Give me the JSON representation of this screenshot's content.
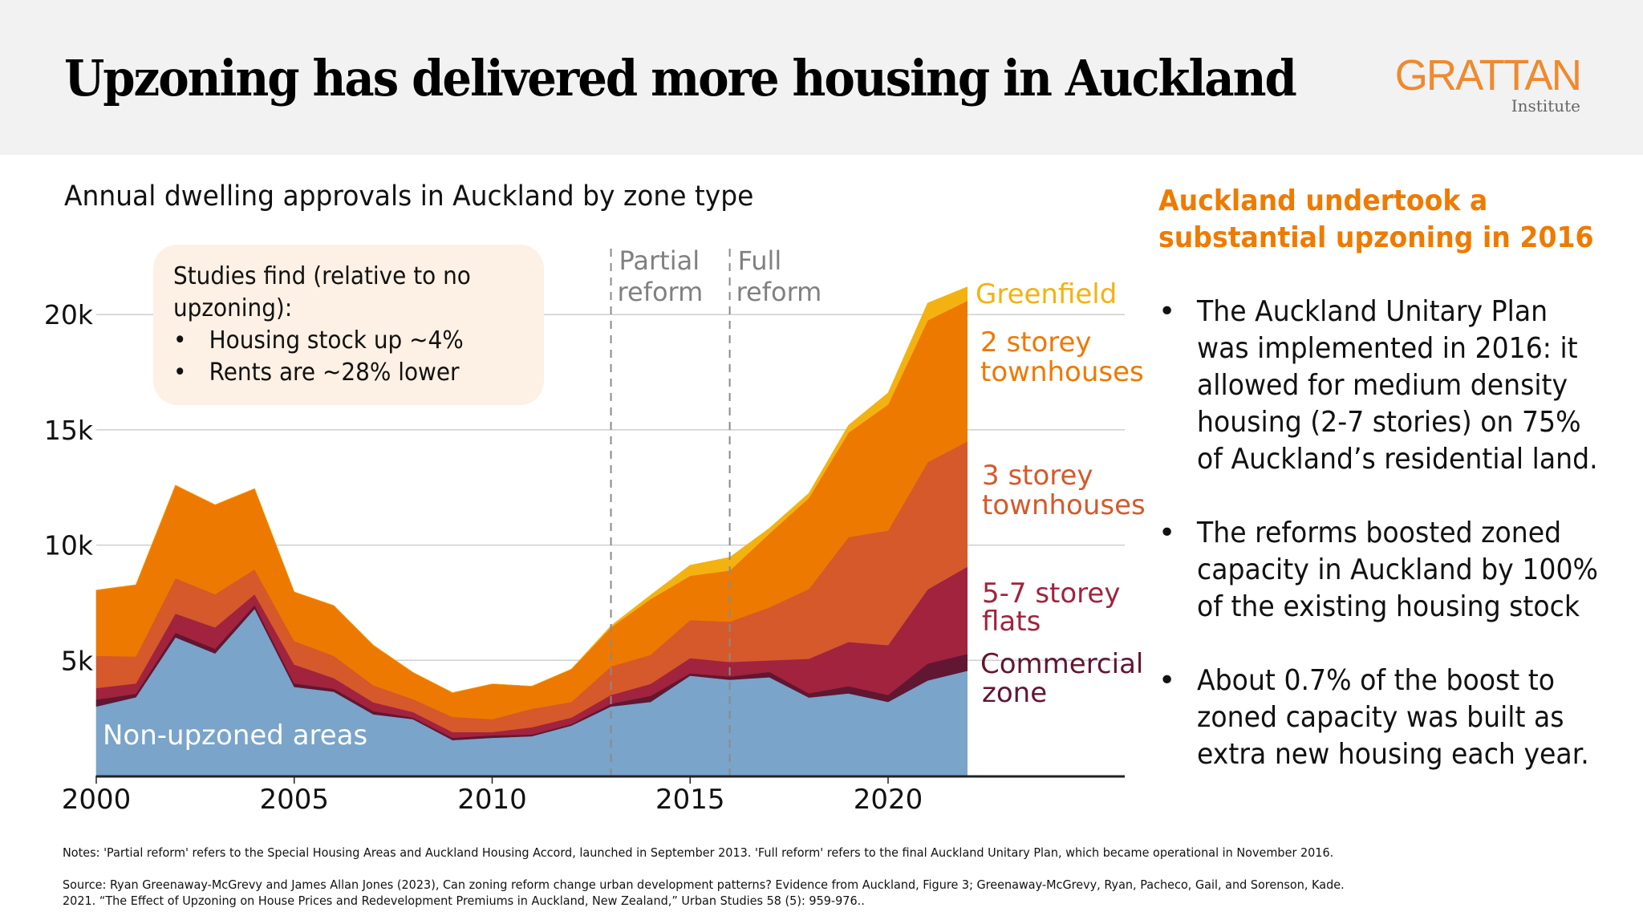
{
  "header": {
    "title": "Upzoning has delivered more housing in Auckland",
    "logo_main": "GRATTAN",
    "logo_sub": "Institute",
    "logo_color": "#ee8a2f"
  },
  "callout": {
    "intro_line1": "Studies find (relative to no",
    "intro_line2": "upzoning):",
    "bullets": [
      "Housing stock up ~4%",
      "Rents are ~28% lower"
    ],
    "bullet_char": "•"
  },
  "side_panel": {
    "title_line1": "Auckland undertook a",
    "title_line2": "substantial upzoning in 2016",
    "title_color": "#ee7b00",
    "bullet_char": "•",
    "bullets": [
      "The Auckland Unitary Plan\nwas implemented in 2016: it\nallowed for medium density\nhousing (2-7 stories) on 75%\nof Auckland’s residential land.",
      "The reforms boosted zoned\ncapacity in Auckland by 100%\nof the existing housing stock",
      "About 0.7% of the boost to\nzoned capacity was built as\nextra new housing each year."
    ]
  },
  "footer": {
    "notes": "Notes: 'Partial reform' refers to the Special Housing Areas and Auckland Housing Accord, launched in September 2013. 'Full reform' refers to the final Auckland Unitary Plan, which became operational in November 2016.",
    "source": "Source: Ryan Greenaway-McGrevy and James Allan Jones (2023), Can zoning reform change urban development patterns? Evidence from Auckland, Figure 3; Greenaway-McGrevy, Ryan, Pacheco, Gail, and  Sorenson, Kade.\n2021. “The Effect of Upzoning on House Prices and Redevelopment Premiums in Auckland, New Zealand,” Urban Studies 58 (5): 959-976.."
  },
  "chart_data": {
    "type": "area",
    "stacked": true,
    "title": "Annual dwelling approvals in Auckland by zone type",
    "xlabel": "",
    "ylabel": "",
    "x": [
      2000,
      2001,
      2002,
      2003,
      2004,
      2005,
      2006,
      2007,
      2008,
      2009,
      2010,
      2011,
      2012,
      2013,
      2014,
      2015,
      2016,
      2017,
      2018,
      2019,
      2020,
      2021,
      2022
    ],
    "xlim": [
      2000,
      2026
    ],
    "xticks": [
      2000,
      2005,
      2010,
      2015,
      2020
    ],
    "xtick_labels": [
      "2000",
      "2005",
      "2010",
      "2015",
      "2020"
    ],
    "ylim": [
      0,
      20000
    ],
    "yticks": [
      5000,
      10000,
      15000,
      20000
    ],
    "ytick_labels": [
      "5k",
      "10k",
      "15k",
      "20k"
    ],
    "grid": "horizontal",
    "legend": "direct-labels-right",
    "series": [
      {
        "name": "Non-upzoned areas",
        "color": "#7aa4ca",
        "label_color": "#ffffff",
        "values": [
          3000,
          3400,
          6000,
          5300,
          7240,
          3850,
          3640,
          2660,
          2450,
          1540,
          1640,
          1710,
          2170,
          3000,
          3200,
          4340,
          4160,
          4270,
          3390,
          3570,
          3200,
          4130,
          4550
        ]
      },
      {
        "name": "Commercial zone",
        "color": "#611631",
        "label_color": "#611631",
        "values": [
          300,
          150,
          200,
          200,
          160,
          150,
          130,
          140,
          70,
          100,
          110,
          70,
          70,
          120,
          260,
          100,
          140,
          230,
          180,
          310,
          300,
          730,
          730
        ]
      },
      {
        "name": "5-7 storey flats",
        "color": "#a1233e",
        "label_color": "#a1233e",
        "values": [
          500,
          450,
          830,
          930,
          470,
          820,
          460,
          380,
          240,
          250,
          140,
          320,
          280,
          380,
          520,
          660,
          630,
          500,
          1500,
          1920,
          2160,
          3220,
          3780
        ]
      },
      {
        "name": "3 storey townhouses",
        "color": "#d5592b",
        "label_color": "#d5592b",
        "values": [
          1400,
          1170,
          1540,
          1440,
          1080,
          1020,
          970,
          740,
          560,
          660,
          560,
          800,
          680,
          1240,
          1260,
          1650,
          1750,
          2300,
          3030,
          4550,
          4970,
          5520,
          5440
        ]
      },
      {
        "name": "2 storey townhouses",
        "color": "#ee7900",
        "label_color": "#ee7900",
        "values": [
          2850,
          3110,
          4030,
          3880,
          3500,
          2130,
          2180,
          1740,
          1160,
          1050,
          1530,
          980,
          1420,
          1690,
          2420,
          1920,
          2220,
          3200,
          3950,
          4530,
          5470,
          6150,
          6100
        ]
      },
      {
        "name": "Greenfield",
        "color": "#f4b211",
        "label_color": "#f4b211",
        "values": [
          0,
          0,
          0,
          0,
          0,
          0,
          0,
          0,
          0,
          0,
          0,
          0,
          0,
          70,
          170,
          460,
          570,
          230,
          200,
          320,
          500,
          750,
          600
        ]
      }
    ],
    "annotations": [
      {
        "x": 2013,
        "label_line1": "Partial",
        "label_line2": "reform"
      },
      {
        "x": 2016,
        "label_line1": "Full",
        "label_line2": "reform"
      }
    ],
    "direct_labels": [
      {
        "series": "Greenfield",
        "lines": [
          "Greenfield"
        ]
      },
      {
        "series": "2 storey townhouses",
        "lines": [
          "2 storey",
          "townhouses"
        ]
      },
      {
        "series": "3 storey townhouses",
        "lines": [
          "3 storey",
          "townhouses"
        ]
      },
      {
        "series": "5-7 storey flats",
        "lines": [
          "5-7 storey",
          "flats"
        ]
      },
      {
        "series": "Commercial zone",
        "lines": [
          "Commercial",
          "zone"
        ]
      },
      {
        "series": "Non-upzoned areas",
        "lines": [
          "Non-upzoned areas"
        ]
      }
    ],
    "annotation_color": "#808080"
  }
}
